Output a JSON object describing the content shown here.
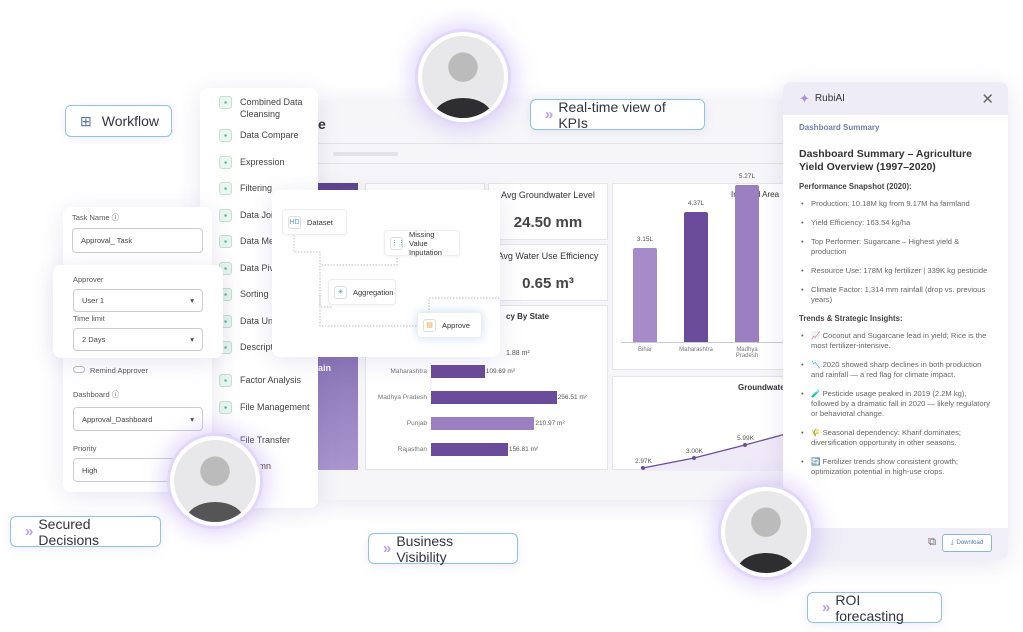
{
  "badges": {
    "workflow": "Workflow",
    "kpis": "Real-time view of KPIs",
    "secured": "Secured Decisions",
    "visibility": "Business Visibility",
    "roi": "ROI forecasting"
  },
  "tools": [
    "Combined Data Cleansing",
    "Data Compare",
    "Expression",
    "Filtering",
    "Data Joi",
    "Data Me",
    "Data Piv",
    "Sorting",
    "Data Unp",
    "Descript Statistics",
    "Factor Analysis",
    "File Management",
    "File Transfer",
    "Column"
  ],
  "dashboard": {
    "title_fragment": "e",
    "sidebar_fragment": "ain",
    "kpis": [
      {
        "title": "Avg Groundwater Level",
        "value": "24.50 mm"
      },
      {
        "title": "Avg Water Use Efficiency",
        "value": "0.65 m³"
      }
    ]
  },
  "flow": {
    "nodes": [
      "Dataset",
      "Missing Value Inputation",
      "Aggregation",
      "Approve"
    ]
  },
  "form": {
    "task_name_label": "Task Name",
    "task_name_value": "Approval_ Task",
    "approver_label": "Approver",
    "approver_value": "User 1",
    "time_limit_label": "Time limit",
    "time_limit_value": "2  Days",
    "remind_label": "Remind Approver",
    "dashboard_label": "Dashboard",
    "dashboard_value": "Approval_Dashboard",
    "priority_label": "Priority",
    "priority_value": "High"
  },
  "chart_data": [
    {
      "type": "bar",
      "orientation": "horizontal",
      "title": "cy By State",
      "categories": [
        "Maharashtra",
        "Madhya Pradesh",
        "Punjab",
        "Rajasthan"
      ],
      "values": [
        109.69,
        256.51,
        210.97,
        156.81
      ],
      "labels": [
        "109.69 m²",
        "256.51 m²",
        "210.97 m²",
        "156.81 m²"
      ],
      "partial_label": "1.88 m²",
      "colors": [
        "#6b4c9a",
        "#6b4c9a",
        "#9a80c0",
        "#6b4c9a"
      ]
    },
    {
      "type": "bar",
      "title": "Irrigated Area",
      "categories": [
        "Bihar",
        "Maharashtra",
        "Madhya Pradesh"
      ],
      "values": [
        3.15,
        4.37,
        5.27
      ],
      "labels": [
        "3.15L",
        "4.37L",
        "5.27L"
      ],
      "colors": [
        "#a58cc9",
        "#6b4c9a",
        "#9a80c0"
      ]
    },
    {
      "type": "line",
      "title": "Groundwater",
      "values": [
        2.97,
        3.0,
        5.99
      ],
      "labels": [
        "2.97K",
        "3.00K",
        "5.99K"
      ],
      "color": "#6b4c9a"
    }
  ],
  "ai": {
    "brand": "RubiAI",
    "section": "Dashboard Summary",
    "heading": "Dashboard Summary – Agriculture Yield Overview (1997–2020)",
    "snapshot_title": "Performance Snapshot (2020):",
    "snapshot": [
      "Production: 10.18M kg from 9.17M ha farmland",
      "Yield Efficiency: 163.54 kg/ha",
      "Top Performer: Sugarcane – Highest yield & production",
      "Resource Use: 178M kg fertilizer | 339K kg pesticide",
      "Climate Factor: 1,314 mm rainfall (drop vs. previous years)"
    ],
    "trends_title": "Trends & Strategic Insights:",
    "trends": [
      "📈 Coconut and Sugarcane lead in yield; Rice is the most fertilizer-intensive.",
      "📉 2020 showed sharp declines in both production and rainfall — a red flag for climate impact.",
      "🧪 Pesticide usage peaked in 2019 (2.2M kg), followed by a dramatic fall in 2020 — likely regulatory or behavioral change.",
      "🌾 Seasonal dependency: Kharif dominates; diversification opportunity in other seasons.",
      "🔄 Fertilizer trends show consistent growth; optimization potential in high-use crops."
    ],
    "download": "Download"
  }
}
